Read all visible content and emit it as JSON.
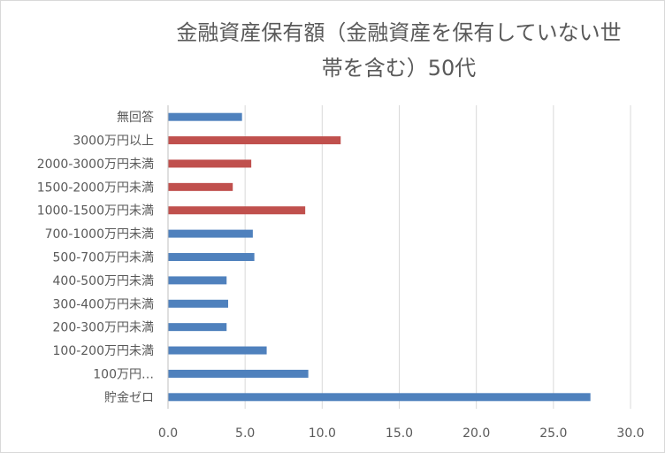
{
  "chart_data": {
    "type": "bar",
    "orientation": "horizontal",
    "title": "金融資産保有額（金融資産を保有していない世帯を含む）50代",
    "categories": [
      "無回答",
      "3000万円以上",
      "2000-3000万円未満",
      "1500-2000万円未満",
      "1000-1500万円未満",
      "700-1000万円未満",
      "500-700万円未満",
      "400-500万円未満",
      "300-400万円未満",
      "200-300万円未満",
      "100-200万円未満",
      "100万円…",
      "貯金ゼロ"
    ],
    "values": [
      4.8,
      11.2,
      5.4,
      4.2,
      8.9,
      5.5,
      5.6,
      3.8,
      3.9,
      3.8,
      6.4,
      9.1,
      27.4
    ],
    "bar_colors": [
      "#4f81bd",
      "#c0504d",
      "#c0504d",
      "#c0504d",
      "#c0504d",
      "#4f81bd",
      "#4f81bd",
      "#4f81bd",
      "#4f81bd",
      "#4f81bd",
      "#4f81bd",
      "#4f81bd",
      "#4f81bd"
    ],
    "xlim": [
      0,
      30
    ],
    "xticks": [
      "0.0",
      "5.0",
      "10.0",
      "15.0",
      "20.0",
      "25.0",
      "30.0"
    ],
    "grid": true,
    "xlabel": "",
    "ylabel": ""
  }
}
